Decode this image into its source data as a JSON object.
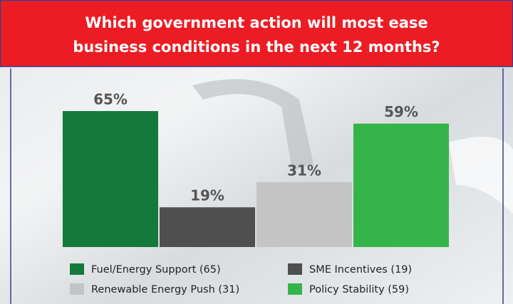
{
  "chart_data": {
    "type": "bar",
    "title": [
      "Which government action will most ease",
      "business conditions in the next 12 months?"
    ],
    "categories": [
      "Fuel/Energy Support  (65)",
      "SME Incentives  (19)",
      "Renewable Energy Push (31)",
      "Policy Stability  (59)"
    ],
    "values": [
      65,
      19,
      31,
      59
    ],
    "value_labels": [
      "65%",
      "19%",
      "31%",
      "59%"
    ],
    "colors": [
      "#137a3c",
      "#4f4f4f",
      "#c4c4c4",
      "#35b44a"
    ]
  }
}
